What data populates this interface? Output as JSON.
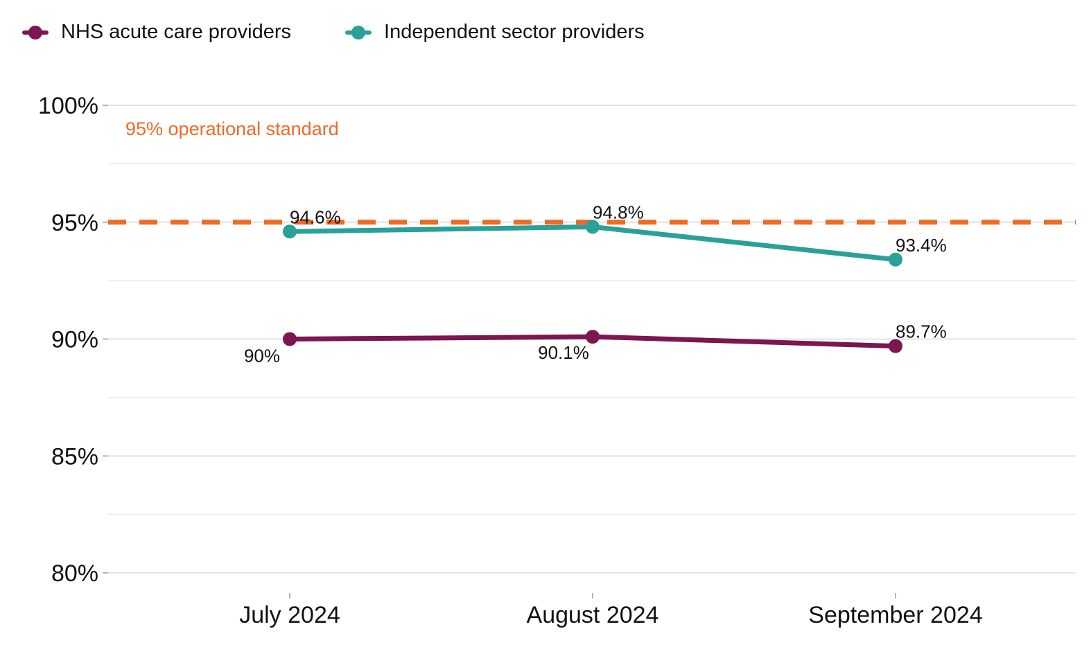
{
  "legend": [
    {
      "label": "NHS acute care providers",
      "color": "#7B1650"
    },
    {
      "label": "Independent sector providers",
      "color": "#2AA198"
    }
  ],
  "chart_data": {
    "type": "line",
    "title": "",
    "xlabel": "",
    "ylabel": "",
    "categories": [
      "July 2024",
      "August 2024",
      "September 2024"
    ],
    "ylim": [
      80,
      100
    ],
    "yticks": [
      80,
      85,
      90,
      95,
      100
    ],
    "ytick_labels": [
      "80%",
      "85%",
      "90%",
      "95%",
      "100%"
    ],
    "grid": true,
    "legend_position": "top-left",
    "series": [
      {
        "name": "NHS acute care providers",
        "color": "#7B1650",
        "values": [
          90,
          90.1,
          89.7
        ],
        "labels": [
          "90%",
          "90.1%",
          "89.7%"
        ]
      },
      {
        "name": "Independent sector providers",
        "color": "#2AA198",
        "values": [
          94.6,
          94.8,
          93.4
        ],
        "labels": [
          "94.6%",
          "94.8%",
          "93.4%"
        ]
      }
    ],
    "reference_line": {
      "value": 95,
      "label": "95% operational standard",
      "color": "#EF6A23",
      "style": "dashed"
    }
  }
}
